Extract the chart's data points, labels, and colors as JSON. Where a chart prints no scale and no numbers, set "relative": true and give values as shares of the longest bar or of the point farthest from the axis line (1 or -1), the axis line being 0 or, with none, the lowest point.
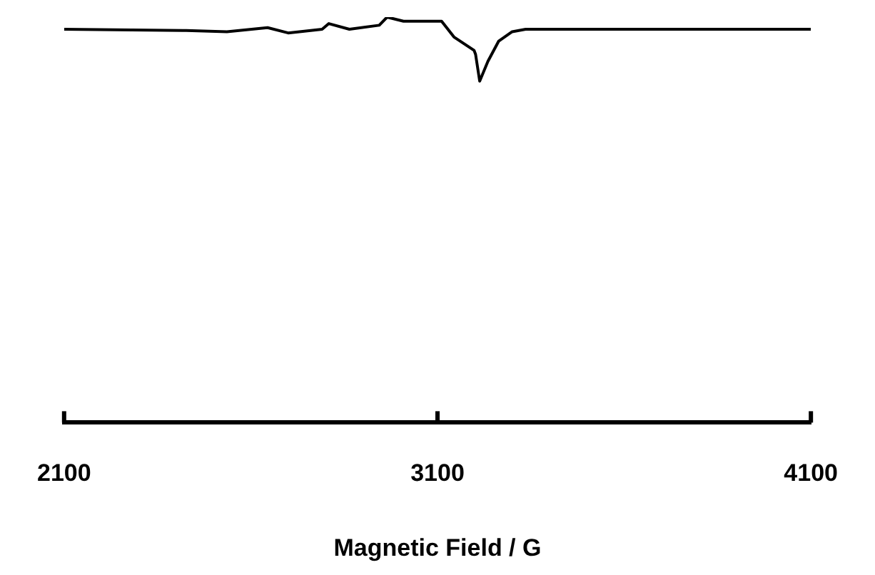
{
  "chart_data": {
    "type": "line",
    "xlabel": "Magnetic Field / G",
    "relative": true,
    "color": "#000000",
    "marker": "none",
    "grid": false,
    "legend": false,
    "tick_labels": "x",
    "xlim": [
      2100,
      4100
    ],
    "xticks": [
      2100,
      3100,
      4100
    ],
    "x": [
      2100,
      2427,
      2536,
      2645,
      2700,
      2791,
      2809,
      2864,
      2944,
      2965,
      3009,
      3111,
      3144,
      3198,
      3202,
      3213,
      3235,
      3264,
      3300,
      3336,
      4100
    ],
    "values": [
      0.97,
      0.967,
      0.964,
      0.974,
      0.961,
      0.97,
      0.984,
      0.97,
      0.98,
      1.0,
      0.99,
      0.99,
      0.951,
      0.918,
      0.908,
      0.842,
      0.891,
      0.941,
      0.964,
      0.97,
      0.97
    ]
  }
}
